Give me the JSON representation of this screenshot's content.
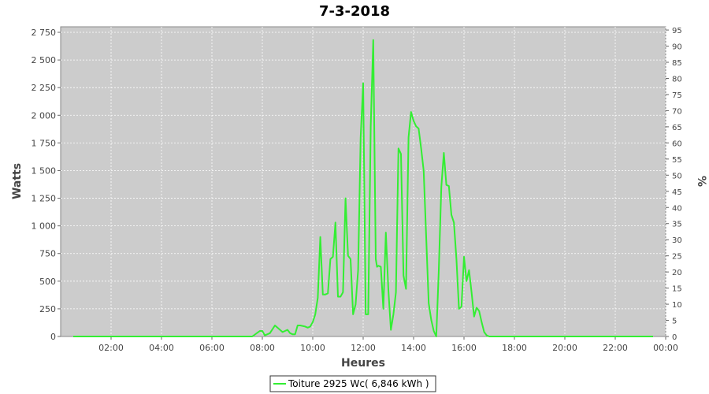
{
  "chart_data": {
    "type": "line",
    "title": "7-3-2018",
    "xlabel": "Heures",
    "ylabel": "Watts",
    "y2label": "%",
    "x_ticks": [
      "02:00",
      "04:00",
      "06:00",
      "08:00",
      "10:00",
      "12:00",
      "14:00",
      "16:00",
      "18:00",
      "20:00",
      "22:00",
      "00:00"
    ],
    "y_ticks": [
      "0",
      "250",
      "500",
      "750",
      "1 000",
      "1 250",
      "1 500",
      "1 750",
      "2 000",
      "2 250",
      "2 500",
      "2 750"
    ],
    "y2_ticks": [
      "0",
      "5",
      "10",
      "15",
      "20",
      "25",
      "30",
      "35",
      "40",
      "45",
      "50",
      "55",
      "60",
      "65",
      "70",
      "75",
      "80",
      "85",
      "90",
      "95"
    ],
    "xlim": [
      0,
      24
    ],
    "ylim": [
      0,
      2800
    ],
    "y2lim": [
      0,
      96
    ],
    "grid": true,
    "legend_position": "bottom-center",
    "colors": {
      "line": "#33ee33",
      "plot_bg": "#cccccc",
      "grid": "#ffffff"
    },
    "series": [
      {
        "name": "Toiture 2925 Wc( 6,846 kWh )",
        "x": [
          0.5,
          7.0,
          7.6,
          7.9,
          8.0,
          8.1,
          8.3,
          8.5,
          8.6,
          8.8,
          8.9,
          9.0,
          9.1,
          9.2,
          9.3,
          9.4,
          9.5,
          9.7,
          9.8,
          9.9,
          10.0,
          10.1,
          10.2,
          10.3,
          10.4,
          10.45,
          10.5,
          10.6,
          10.7,
          10.8,
          10.9,
          11.0,
          11.05,
          11.1,
          11.2,
          11.3,
          11.4,
          11.5,
          11.6,
          11.7,
          11.8,
          11.9,
          12.0,
          12.1,
          12.2,
          12.3,
          12.4,
          12.5,
          12.55,
          12.6,
          12.7,
          12.8,
          12.9,
          13.0,
          13.1,
          13.2,
          13.3,
          13.4,
          13.5,
          13.6,
          13.7,
          13.8,
          13.9,
          14.0,
          14.1,
          14.2,
          14.3,
          14.4,
          14.5,
          14.6,
          14.7,
          14.8,
          14.9,
          15.0,
          15.1,
          15.2,
          15.3,
          15.4,
          15.5,
          15.6,
          15.7,
          15.8,
          15.9,
          16.0,
          16.1,
          16.2,
          16.3,
          16.4,
          16.5,
          16.6,
          16.7,
          16.8,
          16.9,
          17.0,
          17.1,
          17.2,
          17.3,
          17.4,
          17.5,
          17.6,
          17.7,
          17.8,
          17.9,
          18.0,
          18.1,
          18.2,
          18.3,
          18.4,
          18.5,
          19.0,
          23.5
        ],
        "values": [
          0,
          0,
          0,
          50,
          50,
          10,
          30,
          100,
          80,
          40,
          50,
          60,
          30,
          20,
          20,
          100,
          100,
          90,
          80,
          90,
          130,
          200,
          350,
          900,
          380,
          380,
          380,
          390,
          700,
          720,
          1030,
          360,
          360,
          360,
          400,
          1250,
          730,
          700,
          200,
          290,
          600,
          1800,
          2290,
          200,
          200,
          1900,
          2680,
          700,
          630,
          640,
          630,
          250,
          940,
          420,
          60,
          200,
          400,
          1700,
          1650,
          550,
          430,
          1800,
          2030,
          1950,
          1900,
          1880,
          1700,
          1500,
          900,
          300,
          150,
          50,
          0,
          600,
          1350,
          1660,
          1370,
          1360,
          1100,
          1030,
          700,
          250,
          270,
          720,
          500,
          600,
          400,
          180,
          260,
          230,
          130,
          40,
          10,
          0,
          0,
          0,
          0,
          0,
          0,
          0,
          0,
          0,
          0,
          0,
          0,
          0,
          0,
          0,
          0,
          0,
          0
        ]
      }
    ]
  }
}
